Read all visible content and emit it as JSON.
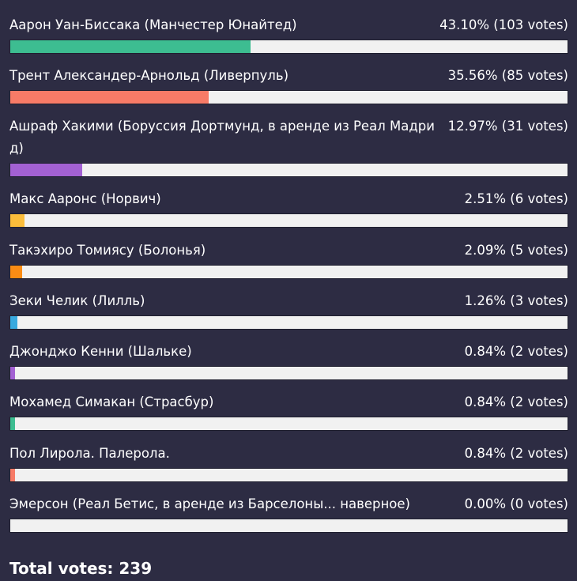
{
  "poll": {
    "options": [
      {
        "label": "Аарон Уан-Биссака (Манчестер Юнайтед)",
        "percent_text": "43.10%",
        "votes_text": "(103 votes)",
        "percent": 43.1,
        "color": "#3dbd91"
      },
      {
        "label": "Трент Александер-Арнольд (Ливерпуль)",
        "percent_text": "35.56%",
        "votes_text": "(85 votes)",
        "percent": 35.56,
        "color": "#f77b67"
      },
      {
        "label": "Ашраф Хакими (Боруссия Дортмунд, в аренде из Реал Мадрид)",
        "percent_text": "12.97%",
        "votes_text": "(31 votes)",
        "percent": 12.97,
        "color": "#a361d3"
      },
      {
        "label": "Макс Ааронс (Норвич)",
        "percent_text": "2.51%",
        "votes_text": "(6 votes)",
        "percent": 2.51,
        "color": "#fbbd3b"
      },
      {
        "label": "Такэхиро Томиясу (Болонья)",
        "percent_text": "2.09%",
        "votes_text": "(5 votes)",
        "percent": 2.09,
        "color": "#fb8c14"
      },
      {
        "label": "Зеки Челик (Лилль)",
        "percent_text": "1.26%",
        "votes_text": "(3 votes)",
        "percent": 1.26,
        "color": "#39a9df"
      },
      {
        "label": "Джонджо Кенни (Шальке)",
        "percent_text": "0.84%",
        "votes_text": "(2 votes)",
        "percent": 0.84,
        "color": "#a361d3"
      },
      {
        "label": "Мохамед Симакан (Страсбур)",
        "percent_text": "0.84%",
        "votes_text": "(2 votes)",
        "percent": 0.84,
        "color": "#3dbd91"
      },
      {
        "label": "Пол Лирола. Палерола.",
        "percent_text": "0.84%",
        "votes_text": "(2 votes)",
        "percent": 0.84,
        "color": "#f77b67"
      },
      {
        "label": "Эмерсон (Реал Бетис, в аренде из Барселоны... наверное)",
        "percent_text": "0.00%",
        "votes_text": "(0 votes)",
        "percent": 0.0,
        "color": "#fbbd3b"
      }
    ],
    "total_votes_text": "Total votes: 239"
  }
}
